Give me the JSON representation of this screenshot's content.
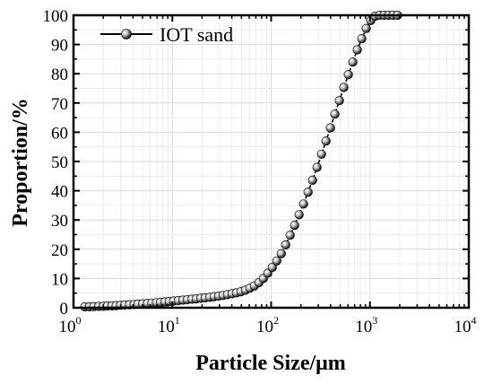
{
  "chart_data": {
    "type": "line",
    "xlabel": "Particle Size/μm",
    "ylabel": "Proportion/%",
    "x_scale": "log",
    "xlim": [
      1,
      10000
    ],
    "ylim": [
      0,
      100
    ],
    "x_ticks": [
      {
        "base": "10",
        "exp": "0",
        "value": 1
      },
      {
        "base": "10",
        "exp": "1",
        "value": 10
      },
      {
        "base": "10",
        "exp": "2",
        "value": 100
      },
      {
        "base": "10",
        "exp": "3",
        "value": 1000
      },
      {
        "base": "10",
        "exp": "4",
        "value": 10000
      }
    ],
    "y_ticks": [
      "0",
      "10",
      "20",
      "30",
      "40",
      "50",
      "60",
      "70",
      "80",
      "90",
      "100"
    ],
    "grid": true,
    "legend_position": "top-left",
    "marker": "sphere",
    "line_style": "dashed",
    "series": [
      {
        "name": "IOT sand",
        "points": [
          [
            1.3,
            0.3
          ],
          [
            1.45,
            0.35
          ],
          [
            1.6,
            0.4
          ],
          [
            1.8,
            0.45
          ],
          [
            2.0,
            0.5
          ],
          [
            2.2,
            0.6
          ],
          [
            2.45,
            0.65
          ],
          [
            2.7,
            0.75
          ],
          [
            3.0,
            0.85
          ],
          [
            3.3,
            0.95
          ],
          [
            3.7,
            1.05
          ],
          [
            4.1,
            1.15
          ],
          [
            4.5,
            1.25
          ],
          [
            5.0,
            1.35
          ],
          [
            5.6,
            1.5
          ],
          [
            6.2,
            1.6
          ],
          [
            6.9,
            1.75
          ],
          [
            7.6,
            1.9
          ],
          [
            8.4,
            2.0
          ],
          [
            9.3,
            2.15
          ],
          [
            10.3,
            2.3
          ],
          [
            11.5,
            2.45
          ],
          [
            12.8,
            2.6
          ],
          [
            14.2,
            2.75
          ],
          [
            15.8,
            2.9
          ],
          [
            17.5,
            3.05
          ],
          [
            19.4,
            3.25
          ],
          [
            21.5,
            3.4
          ],
          [
            23.9,
            3.6
          ],
          [
            26.5,
            3.8
          ],
          [
            29.4,
            4.0
          ],
          [
            32.6,
            4.2
          ],
          [
            36.2,
            4.5
          ],
          [
            40.2,
            4.8
          ],
          [
            44.6,
            5.1
          ],
          [
            49.5,
            5.5
          ],
          [
            55,
            6.0
          ],
          [
            61,
            6.7
          ],
          [
            67.7,
            7.5
          ],
          [
            75.1,
            8.6
          ],
          [
            83.4,
            10.0
          ],
          [
            92.5,
            11.8
          ],
          [
            102.7,
            13.8
          ],
          [
            114,
            16.0
          ],
          [
            126.5,
            18.5
          ],
          [
            140.4,
            21.5
          ],
          [
            155.8,
            24.8
          ],
          [
            172.9,
            28.2
          ],
          [
            191.9,
            31.8
          ],
          [
            213,
            35.5
          ],
          [
            236.4,
            39.5
          ],
          [
            262.4,
            43.6
          ],
          [
            291.2,
            48.0
          ],
          [
            323.2,
            52.5
          ],
          [
            358.7,
            57.0
          ],
          [
            398,
            61.5
          ],
          [
            441.8,
            66.2
          ],
          [
            490.3,
            70.8
          ],
          [
            544.2,
            75.3
          ],
          [
            604,
            79.7
          ],
          [
            670.3,
            84.0
          ],
          [
            744,
            88.2
          ],
          [
            825.7,
            92.0
          ],
          [
            916.4,
            95.5
          ],
          [
            1017,
            98.2
          ],
          [
            1128,
            99.7
          ],
          [
            1253,
            100
          ],
          [
            1390,
            100
          ],
          [
            1543,
            100
          ],
          [
            1713,
            100
          ],
          [
            1901,
            100
          ]
        ]
      }
    ]
  },
  "colors": {
    "axis": "#000000",
    "grid": "#d9d9d9",
    "grid_minor": "#ececec",
    "line": "#000000",
    "marker_light": "#f4f4f4",
    "marker_dark": "#111111"
  }
}
